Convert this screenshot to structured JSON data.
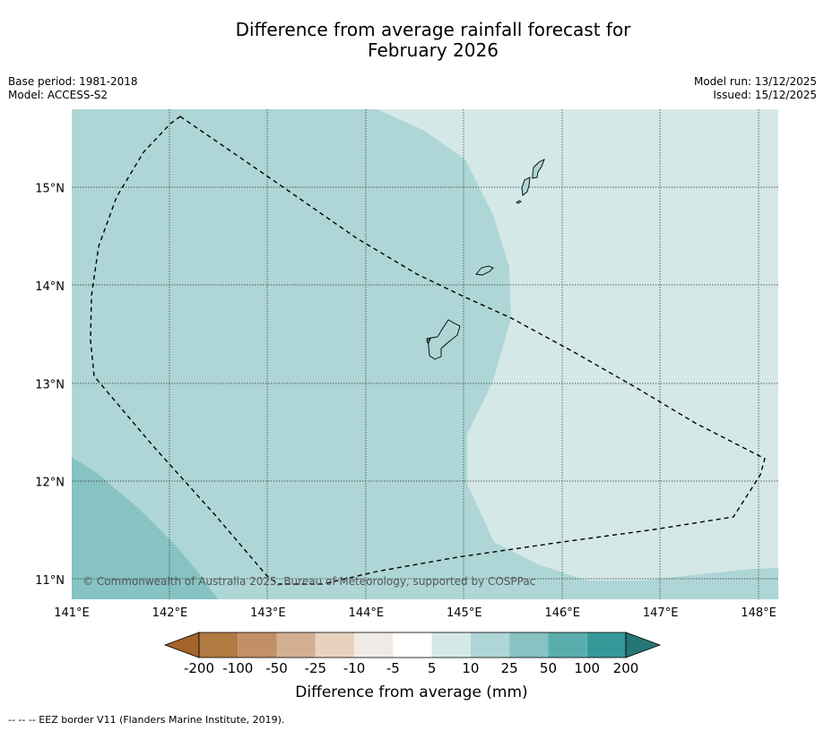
{
  "title": {
    "line1": "Difference from average rainfall forecast for",
    "line2": "February 2026"
  },
  "meta": {
    "base_period": "Base period: 1981-2018",
    "model": "Model: ACCESS-S2",
    "model_run": "Model run: 13/12/2025",
    "issued": "Issued: 15/12/2025"
  },
  "map": {
    "lon_range": [
      141,
      148.2
    ],
    "lat_range": [
      10.8,
      15.8
    ],
    "x_ticks": [
      {
        "value": 141,
        "label": "141°E"
      },
      {
        "value": 142,
        "label": "142°E"
      },
      {
        "value": 143,
        "label": "143°E"
      },
      {
        "value": 144,
        "label": "144°E"
      },
      {
        "value": 145,
        "label": "145°E"
      },
      {
        "value": 146,
        "label": "146°E"
      },
      {
        "value": 147,
        "label": "147°E"
      },
      {
        "value": 148,
        "label": "148°E"
      }
    ],
    "y_ticks": [
      {
        "value": 15,
        "label": "15°N"
      },
      {
        "value": 14,
        "label": "14°N"
      },
      {
        "value": 13,
        "label": "13°N"
      },
      {
        "value": 12,
        "label": "12°N"
      },
      {
        "value": 11,
        "label": "11°N"
      }
    ],
    "copyright": "© Commonwealth of Australia 2025, Bureau of Meteorology, supported by COSPPac",
    "colors": {
      "cat_5_10": "#d5e8e8",
      "cat_10_25": "#aed6d6",
      "cat_25_50": "#86c3c2",
      "coast": "#000000"
    }
  },
  "colorbar": {
    "title": "Difference from average (mm)",
    "labels": [
      "-200",
      "-100",
      "-50",
      "-25",
      "-10",
      "-5",
      "5",
      "10",
      "25",
      "50",
      "100",
      "200"
    ],
    "colors": [
      "#a5642c",
      "#b17a42",
      "#c19068",
      "#d4b093",
      "#e8d2bf",
      "#f0ebe7",
      "#ffffff",
      "#d5e8e8",
      "#aed6d6",
      "#86c3c2",
      "#5badad",
      "#35999a",
      "#257675"
    ]
  },
  "footnote": "--  --  -- EEZ border V11 (Flanders Marine Institute, 2019)."
}
